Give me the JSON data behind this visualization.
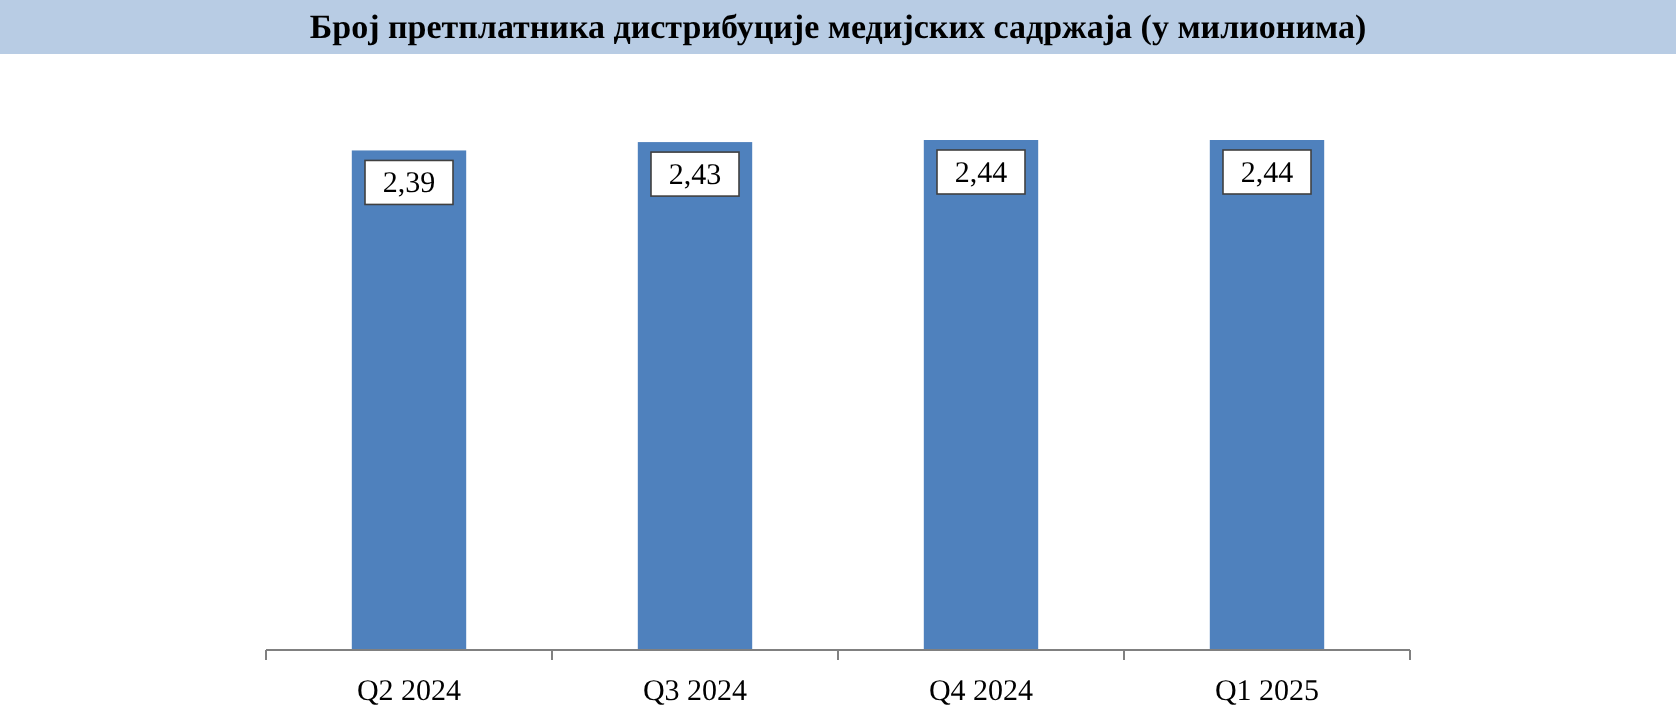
{
  "chart_data": {
    "type": "bar",
    "title": "Број претплатника дистрибуције медијских садржаја (у милионима)",
    "categories": [
      "Q2 2024",
      "Q3 2024",
      "Q4 2024",
      "Q1 2025"
    ],
    "values": [
      2.39,
      2.43,
      2.44,
      2.44
    ],
    "value_labels": [
      "2,39",
      "2,43",
      "2,44",
      "2,44"
    ],
    "color": "#4f81bd"
  }
}
